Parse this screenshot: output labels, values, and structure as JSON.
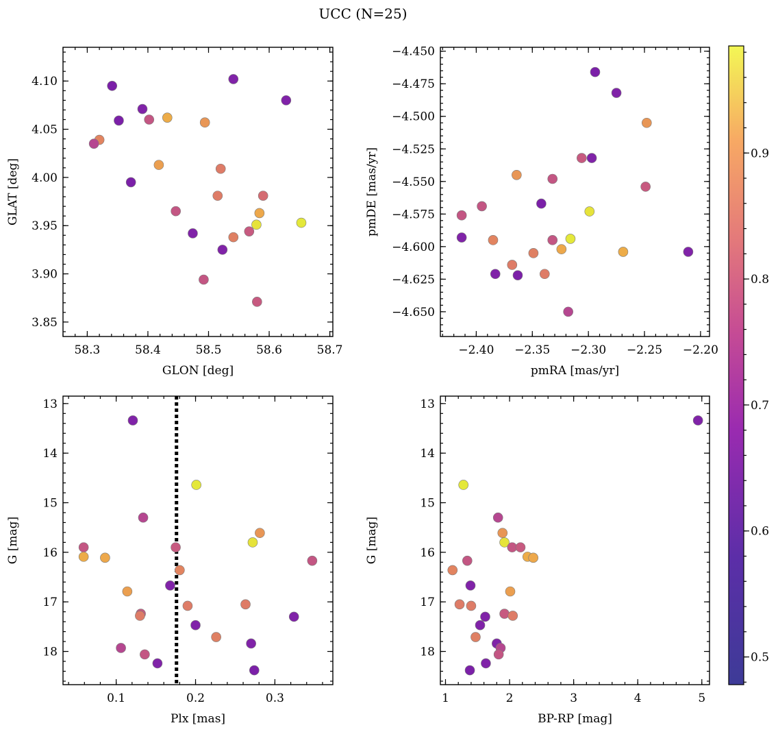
{
  "figure": {
    "title": "UCC (N=25)"
  },
  "colorbar": {
    "min": 0.478,
    "max": 0.985,
    "ticks": [
      0.5,
      0.6,
      0.7,
      0.8,
      0.9
    ],
    "tick_labels": [
      "0.5",
      "0.6",
      "0.7",
      "0.8",
      "0.9"
    ],
    "colormap": "plasma"
  },
  "chart_data": [
    {
      "type": "scatter",
      "id": "glon-glat",
      "xlabel": "GLON [deg]",
      "ylabel": "GLAT [deg]",
      "xlim": [
        58.26,
        58.705
      ],
      "ylim": [
        3.835,
        4.135
      ],
      "xticks": [
        58.3,
        58.4,
        58.5,
        58.6,
        58.7
      ],
      "xtick_labels": [
        "58.3",
        "58.4",
        "58.5",
        "58.6",
        "58.7"
      ],
      "yticks": [
        3.85,
        3.9,
        3.95,
        4.0,
        4.05,
        4.1
      ],
      "ytick_labels": [
        "3.85",
        "3.90",
        "3.95",
        "4.00",
        "4.05",
        "4.10"
      ],
      "y_inverted": false,
      "points": [
        {
          "x": 58.341,
          "y": 4.095,
          "c": 0.49
        },
        {
          "x": 58.541,
          "y": 4.102,
          "c": 0.5
        },
        {
          "x": 58.628,
          "y": 4.08,
          "c": 0.5
        },
        {
          "x": 58.391,
          "y": 4.071,
          "c": 0.5
        },
        {
          "x": 58.432,
          "y": 4.062,
          "c": 0.87
        },
        {
          "x": 58.352,
          "y": 4.059,
          "c": 0.49
        },
        {
          "x": 58.402,
          "y": 4.06,
          "c": 0.66
        },
        {
          "x": 58.494,
          "y": 4.057,
          "c": 0.82
        },
        {
          "x": 58.32,
          "y": 4.039,
          "c": 0.78
        },
        {
          "x": 58.311,
          "y": 4.035,
          "c": 0.62
        },
        {
          "x": 58.418,
          "y": 4.013,
          "c": 0.84
        },
        {
          "x": 58.52,
          "y": 4.009,
          "c": 0.76
        },
        {
          "x": 58.372,
          "y": 3.995,
          "c": 0.49
        },
        {
          "x": 58.515,
          "y": 3.981,
          "c": 0.76
        },
        {
          "x": 58.59,
          "y": 3.981,
          "c": 0.72
        },
        {
          "x": 58.446,
          "y": 3.965,
          "c": 0.66
        },
        {
          "x": 58.584,
          "y": 3.963,
          "c": 0.86
        },
        {
          "x": 58.653,
          "y": 3.953,
          "c": 0.98
        },
        {
          "x": 58.579,
          "y": 3.951,
          "c": 0.97
        },
        {
          "x": 58.567,
          "y": 3.944,
          "c": 0.67
        },
        {
          "x": 58.474,
          "y": 3.942,
          "c": 0.5
        },
        {
          "x": 58.541,
          "y": 3.938,
          "c": 0.77
        },
        {
          "x": 58.523,
          "y": 3.925,
          "c": 0.5
        },
        {
          "x": 58.492,
          "y": 3.894,
          "c": 0.66
        },
        {
          "x": 58.58,
          "y": 3.871,
          "c": 0.67
        }
      ]
    },
    {
      "type": "scatter",
      "id": "pmra-pmde",
      "xlabel": "pmRA [mas/yr]",
      "ylabel": "pmDE [mas/yr]",
      "xlim": [
        -2.432,
        -2.192
      ],
      "ylim": [
        -4.669,
        -4.447
      ],
      "xticks": [
        -2.4,
        -2.35,
        -2.3,
        -2.25,
        -2.2
      ],
      "xtick_labels": [
        "−2.40",
        "−2.35",
        "−2.30",
        "−2.25",
        "−2.20"
      ],
      "yticks": [
        -4.65,
        -4.625,
        -4.6,
        -4.575,
        -4.55,
        -4.525,
        -4.5,
        -4.475,
        -4.45
      ],
      "ytick_labels": [
        "−4.650",
        "−4.625",
        "−4.600",
        "−4.575",
        "−4.550",
        "−4.525",
        "−4.500",
        "−4.475",
        "−4.450"
      ],
      "y_inverted": false,
      "points": [
        {
          "x": -2.294,
          "y": -4.466,
          "c": 0.49
        },
        {
          "x": -2.275,
          "y": -4.482,
          "c": 0.5
        },
        {
          "x": -2.248,
          "y": -4.505,
          "c": 0.82
        },
        {
          "x": -2.306,
          "y": -4.532,
          "c": 0.67
        },
        {
          "x": -2.297,
          "y": -4.532,
          "c": 0.5
        },
        {
          "x": -2.364,
          "y": -4.545,
          "c": 0.82
        },
        {
          "x": -2.332,
          "y": -4.548,
          "c": 0.66
        },
        {
          "x": -2.249,
          "y": -4.554,
          "c": 0.67
        },
        {
          "x": -2.342,
          "y": -4.567,
          "c": 0.49
        },
        {
          "x": -2.395,
          "y": -4.569,
          "c": 0.66
        },
        {
          "x": -2.299,
          "y": -4.573,
          "c": 0.97
        },
        {
          "x": -2.413,
          "y": -4.576,
          "c": 0.66
        },
        {
          "x": -2.413,
          "y": -4.593,
          "c": 0.5
        },
        {
          "x": -2.385,
          "y": -4.595,
          "c": 0.78
        },
        {
          "x": -2.332,
          "y": -4.595,
          "c": 0.66
        },
        {
          "x": -2.316,
          "y": -4.594,
          "c": 0.98
        },
        {
          "x": -2.324,
          "y": -4.602,
          "c": 0.86
        },
        {
          "x": -2.269,
          "y": -4.604,
          "c": 0.87
        },
        {
          "x": -2.211,
          "y": -4.604,
          "c": 0.5
        },
        {
          "x": -2.349,
          "y": -4.605,
          "c": 0.77
        },
        {
          "x": -2.368,
          "y": -4.614,
          "c": 0.76
        },
        {
          "x": -2.383,
          "y": -4.621,
          "c": 0.5
        },
        {
          "x": -2.363,
          "y": -4.622,
          "c": 0.49
        },
        {
          "x": -2.339,
          "y": -4.621,
          "c": 0.76
        },
        {
          "x": -2.318,
          "y": -4.65,
          "c": 0.62
        }
      ]
    },
    {
      "type": "scatter",
      "id": "plx-g",
      "xlabel": "Plx [mas]",
      "ylabel": "G [mag]",
      "xlim": [
        0.033,
        0.373
      ],
      "ylim": [
        18.67,
        12.85
      ],
      "xticks": [
        0.1,
        0.2,
        0.3
      ],
      "xtick_labels": [
        "0.1",
        "0.2",
        "0.3"
      ],
      "yticks": [
        13,
        14,
        15,
        16,
        17,
        18
      ],
      "ytick_labels": [
        "13",
        "14",
        "15",
        "16",
        "17",
        "18"
      ],
      "y_inverted": true,
      "vline": {
        "x": 0.176,
        "style": "dotted"
      },
      "points": [
        {
          "x": 0.121,
          "y": 13.34,
          "c": 0.5
        },
        {
          "x": 0.201,
          "y": 14.64,
          "c": 0.98
        },
        {
          "x": 0.134,
          "y": 15.3,
          "c": 0.62
        },
        {
          "x": 0.281,
          "y": 15.61,
          "c": 0.82
        },
        {
          "x": 0.272,
          "y": 15.8,
          "c": 0.97
        },
        {
          "x": 0.059,
          "y": 15.9,
          "c": 0.66
        },
        {
          "x": 0.175,
          "y": 15.9,
          "c": 0.67
        },
        {
          "x": 0.059,
          "y": 16.09,
          "c": 0.87
        },
        {
          "x": 0.086,
          "y": 16.11,
          "c": 0.86
        },
        {
          "x": 0.347,
          "y": 16.17,
          "c": 0.66
        },
        {
          "x": 0.18,
          "y": 16.36,
          "c": 0.78
        },
        {
          "x": 0.168,
          "y": 16.67,
          "c": 0.5
        },
        {
          "x": 0.114,
          "y": 16.79,
          "c": 0.84
        },
        {
          "x": 0.263,
          "y": 17.05,
          "c": 0.76
        },
        {
          "x": 0.19,
          "y": 17.08,
          "c": 0.76
        },
        {
          "x": 0.131,
          "y": 17.24,
          "c": 0.67
        },
        {
          "x": 0.13,
          "y": 17.28,
          "c": 0.76
        },
        {
          "x": 0.324,
          "y": 17.3,
          "c": 0.5
        },
        {
          "x": 0.2,
          "y": 17.47,
          "c": 0.5
        },
        {
          "x": 0.226,
          "y": 17.71,
          "c": 0.77
        },
        {
          "x": 0.27,
          "y": 17.84,
          "c": 0.5
        },
        {
          "x": 0.106,
          "y": 17.93,
          "c": 0.62
        },
        {
          "x": 0.136,
          "y": 18.06,
          "c": 0.66
        },
        {
          "x": 0.152,
          "y": 18.24,
          "c": 0.5
        },
        {
          "x": 0.274,
          "y": 18.38,
          "c": 0.49
        }
      ]
    },
    {
      "type": "scatter",
      "id": "bprp-g",
      "xlabel": "BP-RP [mag]",
      "ylabel": "G [mag]",
      "xlim": [
        0.92,
        5.12
      ],
      "ylim": [
        18.67,
        12.85
      ],
      "xticks": [
        1,
        2,
        3,
        4,
        5
      ],
      "xtick_labels": [
        "1",
        "2",
        "3",
        "4",
        "5"
      ],
      "yticks": [
        13,
        14,
        15,
        16,
        17,
        18
      ],
      "ytick_labels": [
        "13",
        "14",
        "15",
        "16",
        "17",
        "18"
      ],
      "y_inverted": true,
      "points": [
        {
          "x": 4.94,
          "y": 13.34,
          "c": 0.5
        },
        {
          "x": 1.28,
          "y": 14.64,
          "c": 0.98
        },
        {
          "x": 1.82,
          "y": 15.3,
          "c": 0.62
        },
        {
          "x": 1.89,
          "y": 15.61,
          "c": 0.82
        },
        {
          "x": 1.92,
          "y": 15.8,
          "c": 0.97
        },
        {
          "x": 2.04,
          "y": 15.9,
          "c": 0.66
        },
        {
          "x": 2.17,
          "y": 15.9,
          "c": 0.67
        },
        {
          "x": 2.28,
          "y": 16.09,
          "c": 0.87
        },
        {
          "x": 2.37,
          "y": 16.11,
          "c": 0.86
        },
        {
          "x": 1.34,
          "y": 16.17,
          "c": 0.66
        },
        {
          "x": 1.11,
          "y": 16.36,
          "c": 0.78
        },
        {
          "x": 1.39,
          "y": 16.67,
          "c": 0.5
        },
        {
          "x": 2.01,
          "y": 16.79,
          "c": 0.84
        },
        {
          "x": 1.22,
          "y": 17.05,
          "c": 0.76
        },
        {
          "x": 1.4,
          "y": 17.08,
          "c": 0.76
        },
        {
          "x": 1.92,
          "y": 17.24,
          "c": 0.67
        },
        {
          "x": 2.05,
          "y": 17.28,
          "c": 0.76
        },
        {
          "x": 1.62,
          "y": 17.3,
          "c": 0.5
        },
        {
          "x": 1.54,
          "y": 17.47,
          "c": 0.5
        },
        {
          "x": 1.47,
          "y": 17.71,
          "c": 0.77
        },
        {
          "x": 1.8,
          "y": 17.84,
          "c": 0.5
        },
        {
          "x": 1.86,
          "y": 17.93,
          "c": 0.62
        },
        {
          "x": 1.83,
          "y": 18.06,
          "c": 0.66
        },
        {
          "x": 1.63,
          "y": 18.24,
          "c": 0.5
        },
        {
          "x": 1.38,
          "y": 18.38,
          "c": 0.49
        }
      ]
    }
  ]
}
